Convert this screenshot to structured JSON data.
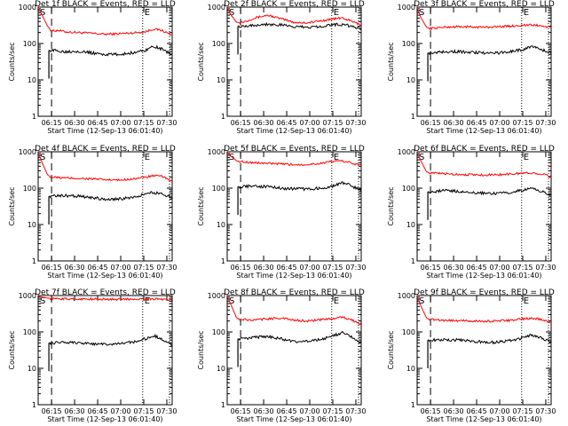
{
  "colors": {
    "events": "#000000",
    "lld": "#ff0000",
    "background": "#ffffff"
  },
  "chart_data": [
    {
      "type": "line",
      "title": "Det 1f BLACK = Events, RED = LLD",
      "xlabel": "Start Time (12-Sep-13 06:01:40)",
      "ylabel": "Counts/sec",
      "yscale": "log",
      "ylim": [
        1,
        1000
      ],
      "yticks": [
        "1",
        "10",
        "100",
        "1000"
      ],
      "xticks": [
        "06:15",
        "06:30",
        "06:45",
        "07:00",
        "07:15",
        "07:30"
      ],
      "markers": {
        "start": "S",
        "end": "E"
      },
      "series": [
        {
          "x": [
            0.0,
            0.03,
            0.07,
            0.1,
            0.15,
            0.2,
            0.3,
            0.4,
            0.5,
            0.6,
            0.7,
            0.8,
            0.86,
            0.92,
            1.0
          ],
          "values": [
            950,
            600,
            300,
            220,
            230,
            210,
            200,
            190,
            180,
            185,
            195,
            210,
            250,
            230,
            170
          ]
        },
        {
          "x": [
            0.08,
            0.1,
            0.2,
            0.3,
            0.4,
            0.5,
            0.6,
            0.7,
            0.8,
            0.86,
            0.92,
            1.0
          ],
          "values": [
            65,
            65,
            60,
            62,
            55,
            50,
            50,
            55,
            65,
            85,
            70,
            50
          ]
        }
      ]
    },
    {
      "type": "line",
      "title": "Det 2f BLACK = Events, RED = LLD",
      "xlabel": "Start Time (12-Sep-13 06:01:40)",
      "ylabel": "Counts/sec",
      "yscale": "log",
      "ylim": [
        1,
        1000
      ],
      "yticks": [
        "1",
        "10",
        "100",
        "1000"
      ],
      "xticks": [
        "06:15",
        "06:30",
        "06:45",
        "07:00",
        "07:15",
        "07:30"
      ],
      "markers": {
        "start": "S",
        "end": "E"
      },
      "series": [
        {
          "x": [
            0.0,
            0.03,
            0.07,
            0.1,
            0.15,
            0.2,
            0.3,
            0.4,
            0.5,
            0.6,
            0.7,
            0.8,
            0.86,
            0.92,
            1.0
          ],
          "values": [
            950,
            600,
            380,
            380,
            420,
            500,
            600,
            480,
            380,
            370,
            420,
            480,
            500,
            420,
            320
          ]
        },
        {
          "x": [
            0.08,
            0.1,
            0.2,
            0.3,
            0.4,
            0.5,
            0.6,
            0.7,
            0.8,
            0.86,
            0.92,
            1.0
          ],
          "values": [
            300,
            300,
            320,
            340,
            320,
            290,
            280,
            300,
            330,
            330,
            300,
            260
          ]
        }
      ]
    },
    {
      "type": "line",
      "title": "Det 3f BLACK = Events, RED = LLD",
      "xlabel": "Start Time (12-Sep-13 06:01:40)",
      "ylabel": "Counts/sec",
      "yscale": "log",
      "ylim": [
        1,
        1000
      ],
      "yticks": [
        "1",
        "10",
        "100",
        "1000"
      ],
      "xticks": [
        "06:15",
        "06:30",
        "06:45",
        "07:00",
        "07:15",
        "07:30"
      ],
      "markers": {
        "start": "S",
        "end": "E"
      },
      "series": [
        {
          "x": [
            0.0,
            0.03,
            0.07,
            0.1,
            0.15,
            0.2,
            0.3,
            0.4,
            0.5,
            0.6,
            0.7,
            0.8,
            0.86,
            0.92,
            1.0
          ],
          "values": [
            950,
            500,
            280,
            260,
            270,
            280,
            290,
            285,
            280,
            290,
            300,
            320,
            320,
            310,
            270
          ]
        },
        {
          "x": [
            0.08,
            0.1,
            0.2,
            0.3,
            0.4,
            0.5,
            0.6,
            0.7,
            0.8,
            0.86,
            0.92,
            1.0
          ],
          "values": [
            55,
            55,
            60,
            60,
            58,
            55,
            55,
            60,
            70,
            85,
            70,
            55
          ]
        }
      ]
    },
    {
      "type": "line",
      "title": "Det 4f BLACK = Events, RED = LLD",
      "xlabel": "Start Time (12-Sep-13 06:01:40)",
      "ylabel": "Counts/sec",
      "yscale": "log",
      "ylim": [
        1,
        1000
      ],
      "yticks": [
        "1",
        "10",
        "100",
        "1000"
      ],
      "xticks": [
        "06:15",
        "06:30",
        "06:45",
        "07:00",
        "07:15",
        "07:30"
      ],
      "markers": {
        "start": "S",
        "end": "E"
      },
      "series": [
        {
          "x": [
            0.0,
            0.03,
            0.07,
            0.1,
            0.15,
            0.2,
            0.3,
            0.4,
            0.5,
            0.6,
            0.7,
            0.8,
            0.86,
            0.92,
            1.0
          ],
          "values": [
            950,
            500,
            230,
            200,
            195,
            190,
            185,
            180,
            170,
            165,
            180,
            200,
            220,
            210,
            160
          ]
        },
        {
          "x": [
            0.08,
            0.1,
            0.2,
            0.3,
            0.4,
            0.5,
            0.6,
            0.7,
            0.8,
            0.86,
            0.92,
            1.0
          ],
          "values": [
            60,
            60,
            62,
            60,
            55,
            50,
            50,
            55,
            70,
            75,
            70,
            55
          ]
        }
      ]
    },
    {
      "type": "line",
      "title": "Det 5f BLACK = Events, RED = LLD",
      "xlabel": "Start Time (12-Sep-13 06:01:40)",
      "ylabel": "Counts/sec",
      "yscale": "log",
      "ylim": [
        1,
        1000
      ],
      "yticks": [
        "1",
        "10",
        "100",
        "1000"
      ],
      "xticks": [
        "06:15",
        "06:30",
        "06:45",
        "07:00",
        "07:15",
        "07:30"
      ],
      "markers": {
        "start": "S",
        "end": "E"
      },
      "series": [
        {
          "x": [
            0.0,
            0.03,
            0.07,
            0.1,
            0.15,
            0.2,
            0.3,
            0.4,
            0.5,
            0.6,
            0.7,
            0.8,
            0.86,
            0.92,
            1.0
          ],
          "values": [
            950,
            750,
            560,
            540,
            520,
            500,
            480,
            460,
            440,
            450,
            480,
            550,
            560,
            500,
            420
          ]
        },
        {
          "x": [
            0.08,
            0.1,
            0.2,
            0.3,
            0.4,
            0.5,
            0.6,
            0.7,
            0.8,
            0.86,
            0.92,
            1.0
          ],
          "values": [
            110,
            110,
            115,
            110,
            100,
            95,
            95,
            100,
            115,
            140,
            120,
            85
          ]
        }
      ]
    },
    {
      "type": "line",
      "title": "Det 6f BLACK = Events, RED = LLD",
      "xlabel": "Start Time (12-Sep-13 06:01:40)",
      "ylabel": "Counts/sec",
      "yscale": "log",
      "ylim": [
        1,
        1000
      ],
      "yticks": [
        "1",
        "10",
        "100",
        "1000"
      ],
      "xticks": [
        "06:15",
        "06:30",
        "06:45",
        "07:00",
        "07:15",
        "07:30"
      ],
      "markers": {
        "start": "S",
        "end": "E"
      },
      "series": [
        {
          "x": [
            0.0,
            0.03,
            0.07,
            0.1,
            0.15,
            0.2,
            0.3,
            0.4,
            0.5,
            0.6,
            0.7,
            0.8,
            0.86,
            0.92,
            1.0
          ],
          "values": [
            950,
            550,
            280,
            260,
            255,
            250,
            240,
            235,
            230,
            235,
            245,
            260,
            260,
            250,
            210
          ]
        },
        {
          "x": [
            0.08,
            0.1,
            0.2,
            0.3,
            0.4,
            0.5,
            0.6,
            0.7,
            0.8,
            0.86,
            0.92,
            1.0
          ],
          "values": [
            80,
            80,
            85,
            82,
            78,
            72,
            72,
            78,
            90,
            100,
            85,
            65
          ]
        }
      ]
    },
    {
      "type": "line",
      "title": "Det 7f BLACK = Events, RED = LLD",
      "xlabel": "Start Time (12-Sep-13 06:01:40)",
      "ylabel": "Counts/sec",
      "yscale": "log",
      "ylim": [
        1,
        1000
      ],
      "yticks": [
        "1",
        "10",
        "100",
        "1000"
      ],
      "xticks": [
        "06:15",
        "06:30",
        "06:45",
        "07:00",
        "07:15",
        "07:30"
      ],
      "markers": {
        "start": "S",
        "end": "E"
      },
      "series": [
        {
          "x": [
            0.0,
            0.03,
            0.07,
            0.1,
            0.15,
            0.2,
            0.3,
            0.4,
            0.5,
            0.6,
            0.7,
            0.8,
            0.86,
            0.92,
            1.0
          ],
          "values": [
            950,
            900,
            850,
            830,
            820,
            810,
            800,
            800,
            790,
            790,
            800,
            810,
            810,
            800,
            780
          ]
        },
        {
          "x": [
            0.08,
            0.1,
            0.2,
            0.3,
            0.4,
            0.5,
            0.6,
            0.7,
            0.8,
            0.86,
            0.92,
            1.0
          ],
          "values": [
            50,
            50,
            52,
            50,
            48,
            45,
            46,
            52,
            65,
            80,
            65,
            45
          ]
        }
      ]
    },
    {
      "type": "line",
      "title": "Det 8f BLACK = Events, RED = LLD",
      "xlabel": "Start Time (12-Sep-13 06:01:40)",
      "ylabel": "Counts/sec",
      "yscale": "log",
      "ylim": [
        1,
        1000
      ],
      "yticks": [
        "1",
        "10",
        "100",
        "1000"
      ],
      "xticks": [
        "06:15",
        "06:30",
        "06:45",
        "07:00",
        "07:15",
        "07:30"
      ],
      "markers": {
        "start": "S",
        "end": "E"
      },
      "series": [
        {
          "x": [
            0.0,
            0.03,
            0.07,
            0.1,
            0.15,
            0.2,
            0.3,
            0.4,
            0.5,
            0.6,
            0.7,
            0.8,
            0.86,
            0.92,
            1.0
          ],
          "values": [
            950,
            550,
            240,
            220,
            215,
            210,
            230,
            240,
            210,
            200,
            215,
            240,
            250,
            220,
            160
          ]
        },
        {
          "x": [
            0.08,
            0.1,
            0.2,
            0.3,
            0.4,
            0.5,
            0.6,
            0.7,
            0.8,
            0.86,
            0.92,
            1.0
          ],
          "values": [
            65,
            65,
            70,
            75,
            65,
            55,
            55,
            62,
            80,
            95,
            75,
            50
          ]
        }
      ]
    },
    {
      "type": "line",
      "title": "Det 9f BLACK = Events, RED = LLD",
      "xlabel": "Start Time (12-Sep-13 06:01:40)",
      "ylabel": "Counts/sec",
      "yscale": "log",
      "ylim": [
        1,
        1000
      ],
      "yticks": [
        "1",
        "10",
        "100",
        "1000"
      ],
      "xticks": [
        "06:15",
        "06:30",
        "06:45",
        "07:00",
        "07:15",
        "07:30"
      ],
      "markers": {
        "start": "S",
        "end": "E"
      },
      "series": [
        {
          "x": [
            0.0,
            0.03,
            0.07,
            0.1,
            0.15,
            0.2,
            0.3,
            0.4,
            0.5,
            0.6,
            0.7,
            0.8,
            0.86,
            0.92,
            1.0
          ],
          "values": [
            950,
            500,
            240,
            220,
            215,
            210,
            205,
            200,
            195,
            200,
            210,
            230,
            235,
            225,
            180
          ]
        },
        {
          "x": [
            0.08,
            0.1,
            0.2,
            0.3,
            0.4,
            0.5,
            0.6,
            0.7,
            0.8,
            0.86,
            0.92,
            1.0
          ],
          "values": [
            60,
            60,
            62,
            60,
            56,
            52,
            52,
            58,
            70,
            82,
            70,
            52
          ]
        }
      ]
    }
  ]
}
